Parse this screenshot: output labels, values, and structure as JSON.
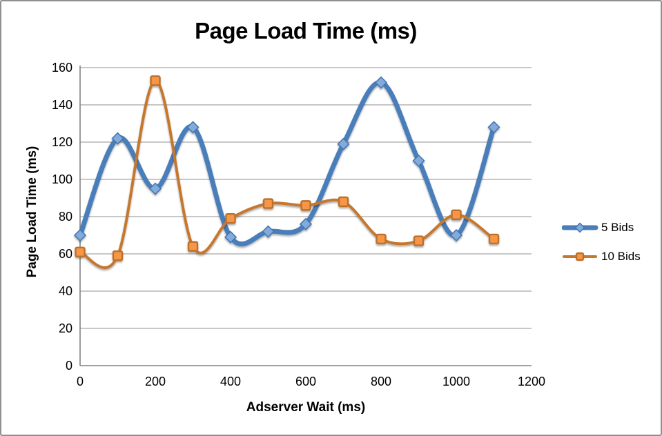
{
  "window": {
    "background": "#ffffff",
    "border_color": "#8f8f92"
  },
  "chart_data": {
    "type": "line",
    "title": "Page Load Time (ms)",
    "xlabel": "Adserver Wait (ms)",
    "ylabel": "Page Load Time (ms)",
    "x": [
      0,
      100,
      200,
      300,
      400,
      500,
      600,
      700,
      800,
      900,
      1000,
      1100
    ],
    "series": [
      {
        "name": "5 Bids",
        "values": [
          70,
          122,
          95,
          128,
          69,
          72,
          76,
          119,
          152,
          110,
          70,
          128
        ],
        "line_color": "#4A7EBB",
        "line_width": 7,
        "marker": "diamond",
        "marker_fill": "#82ABDC",
        "marker_stroke": "#4173AE",
        "marker_size": 16
      },
      {
        "name": "10 Bids",
        "values": [
          61,
          59,
          153,
          64,
          79,
          87,
          86,
          88,
          68,
          67,
          81,
          68
        ],
        "line_color": "#C6772F",
        "line_width": 4,
        "marker": "square",
        "marker_fill": "#F79646",
        "marker_stroke": "#BC6F2A",
        "marker_size": 13
      }
    ],
    "smooth": true,
    "xlim": [
      0,
      1200
    ],
    "ylim": [
      0,
      160
    ],
    "x_ticks": [
      0,
      200,
      400,
      600,
      800,
      1000,
      1200
    ],
    "y_ticks": [
      0,
      20,
      40,
      60,
      80,
      100,
      120,
      140,
      160
    ],
    "grid": "horizontal",
    "gridline_color": "#A6A6A6",
    "axis_color": "#808080",
    "tick_label_color": "#000000",
    "tick_font_size": 18,
    "legend_position": "right"
  }
}
